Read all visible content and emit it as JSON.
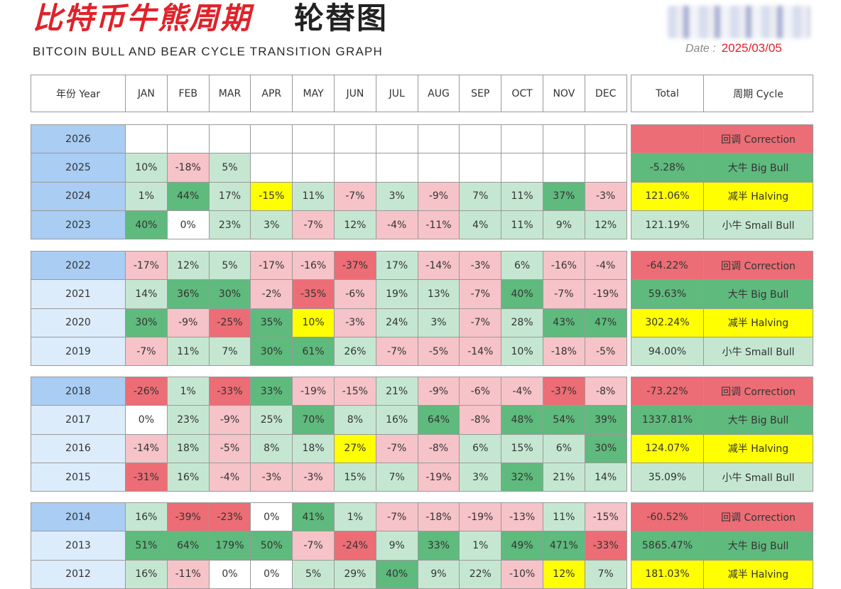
{
  "title": {
    "cn_red": "比特币牛熊周期",
    "cn_black": "轮替图",
    "en": "BITCOIN BULL AND BEAR CYCLE TRANSITION GRAPH"
  },
  "date": {
    "label": "Date :",
    "value": "2025/03/05"
  },
  "headers": {
    "year": "年份 Year",
    "months": [
      "JAN",
      "FEB",
      "MAR",
      "APR",
      "MAY",
      "JUN",
      "JUL",
      "AUG",
      "SEP",
      "OCT",
      "NOV",
      "DEC"
    ],
    "total": "Total",
    "cycle": "周期 Cycle"
  },
  "colors": {
    "red_strong": "#ec6d75",
    "red_light": "#f6c3c8",
    "green_strong": "#5fba7d",
    "green_light": "#c5e7d1",
    "yellow": "#ffff00",
    "blue_strong": "#a9cdf3",
    "blue_light": "#dcecfb"
  },
  "blocks": [
    {
      "rows": [
        {
          "year": "2026",
          "months": [
            "",
            "",
            "",
            "",
            "",
            "",
            "",
            "",
            "",
            "",
            "",
            ""
          ],
          "total": "",
          "cycle": "回调 Correction"
        },
        {
          "year": "2025",
          "months": [
            "10%",
            "-18%",
            "5%",
            "",
            "",
            "",
            "",
            "",
            "",
            "",
            "",
            ""
          ],
          "total": "-5.28%",
          "cycle": "大牛 Big Bull"
        },
        {
          "year": "2024",
          "months": [
            "1%",
            "44%",
            "17%",
            "-15%",
            "11%",
            "-7%",
            "3%",
            "-9%",
            "7%",
            "11%",
            "37%",
            "-3%"
          ],
          "total": "121.06%",
          "cycle": "减半 Halving"
        },
        {
          "year": "2023",
          "months": [
            "40%",
            "0%",
            "23%",
            "3%",
            "-7%",
            "12%",
            "-4%",
            "-11%",
            "4%",
            "11%",
            "9%",
            "12%"
          ],
          "total": "121.19%",
          "cycle": "小牛 Small Bull"
        }
      ]
    },
    {
      "rows": [
        {
          "year": "2022",
          "months": [
            "-17%",
            "12%",
            "5%",
            "-17%",
            "-16%",
            "-37%",
            "17%",
            "-14%",
            "-3%",
            "6%",
            "-16%",
            "-4%"
          ],
          "total": "-64.22%",
          "cycle": "回调 Correction"
        },
        {
          "year": "2021",
          "months": [
            "14%",
            "36%",
            "30%",
            "-2%",
            "-35%",
            "-6%",
            "19%",
            "13%",
            "-7%",
            "40%",
            "-7%",
            "-19%"
          ],
          "total": "59.63%",
          "cycle": "大牛 Big Bull"
        },
        {
          "year": "2020",
          "months": [
            "30%",
            "-9%",
            "-25%",
            "35%",
            "10%",
            "-3%",
            "24%",
            "3%",
            "-7%",
            "28%",
            "43%",
            "47%"
          ],
          "total": "302.24%",
          "cycle": "减半 Halving"
        },
        {
          "year": "2019",
          "months": [
            "-7%",
            "11%",
            "7%",
            "30%",
            "61%",
            "26%",
            "-7%",
            "-5%",
            "-14%",
            "10%",
            "-18%",
            "-5%"
          ],
          "total": "94.00%",
          "cycle": "小牛 Small Bull"
        }
      ]
    },
    {
      "rows": [
        {
          "year": "2018",
          "months": [
            "-26%",
            "1%",
            "-33%",
            "33%",
            "-19%",
            "-15%",
            "21%",
            "-9%",
            "-6%",
            "-4%",
            "-37%",
            "-8%"
          ],
          "total": "-73.22%",
          "cycle": "回调 Correction"
        },
        {
          "year": "2017",
          "months": [
            "0%",
            "23%",
            "-9%",
            "25%",
            "70%",
            "8%",
            "16%",
            "64%",
            "-8%",
            "48%",
            "54%",
            "39%"
          ],
          "total": "1337.81%",
          "cycle": "大牛 Big Bull"
        },
        {
          "year": "2016",
          "months": [
            "-14%",
            "18%",
            "-5%",
            "8%",
            "18%",
            "27%",
            "-7%",
            "-8%",
            "6%",
            "15%",
            "6%",
            "30%"
          ],
          "total": "124.07%",
          "cycle": "减半 Halving"
        },
        {
          "year": "2015",
          "months": [
            "-31%",
            "16%",
            "-4%",
            "-3%",
            "-3%",
            "15%",
            "7%",
            "-19%",
            "3%",
            "32%",
            "21%",
            "14%"
          ],
          "total": "35.09%",
          "cycle": "小牛 Small Bull"
        }
      ]
    },
    {
      "rows": [
        {
          "year": "2014",
          "months": [
            "16%",
            "-39%",
            "-23%",
            "0%",
            "41%",
            "1%",
            "-7%",
            "-18%",
            "-19%",
            "-13%",
            "11%",
            "-15%"
          ],
          "total": "-60.52%",
          "cycle": "回调 Correction"
        },
        {
          "year": "2013",
          "months": [
            "51%",
            "64%",
            "179%",
            "50%",
            "-7%",
            "-24%",
            "9%",
            "33%",
            "1%",
            "49%",
            "471%",
            "-33%"
          ],
          "total": "5865.47%",
          "cycle": "大牛 Big Bull"
        },
        {
          "year": "2012",
          "months": [
            "16%",
            "-11%",
            "0%",
            "0%",
            "5%",
            "29%",
            "40%",
            "9%",
            "22%",
            "-10%",
            "12%",
            "7%"
          ],
          "total": "181.03%",
          "cycle": "减半 Halving"
        }
      ]
    }
  ],
  "highlights": {
    "yellow_month_cells": [
      [
        "2024",
        "APR"
      ],
      [
        "2020",
        "MAY"
      ],
      [
        "2016",
        "JUN"
      ],
      [
        "2012",
        "NOV"
      ]
    ]
  }
}
